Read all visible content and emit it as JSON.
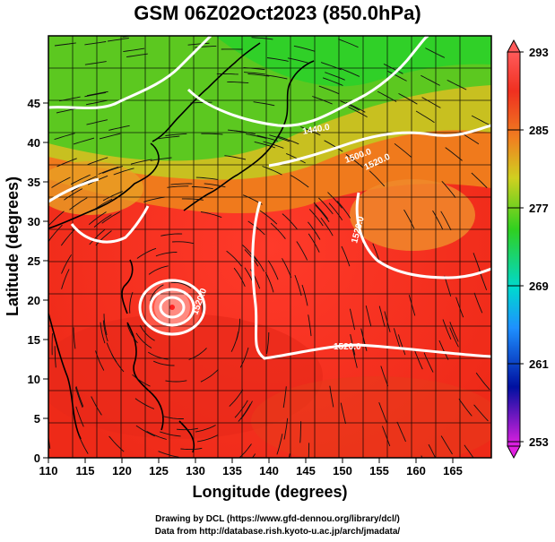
{
  "title": "GSM 06Z02Oct2023 (850.0hPa)",
  "xlabel": "Longitude (degrees)",
  "ylabel": "Latitude  (degrees)",
  "x_ticks": [
    "110",
    "115",
    "120",
    "125",
    "130",
    "135",
    "140",
    "145",
    "150",
    "155",
    "160",
    "165"
  ],
  "y_ticks": [
    "0",
    "5",
    "10",
    "15",
    "20",
    "25",
    "30",
    "35",
    "40",
    "45"
  ],
  "colorbar": {
    "labels": [
      "293",
      "285",
      "277",
      "269",
      "261",
      "253"
    ],
    "min": 253,
    "max": 293
  },
  "contour_labels": [
    "1440.0",
    "1500.0",
    "1520.0",
    "1520.0",
    "1520.0",
    "1520.0"
  ],
  "credits": [
    "Drawing by DCL (https://www.gfd-dennou.org/library/dcl/)",
    "Data from http://database.rish.kyoto-u.ac.jp/arch/jmadata/"
  ],
  "chart_data": {
    "type": "heatmap",
    "title": "GSM 06Z02Oct2023 (850.0hPa)",
    "xlabel": "Longitude (degrees)",
    "ylabel": "Latitude  (degrees)",
    "xlim": [
      110,
      170
    ],
    "ylim": [
      0,
      50
    ],
    "colorbar_range": [
      253,
      293
    ],
    "colormap": [
      "#e020d0",
      "#0000a0",
      "#1e90ff",
      "#00e0e0",
      "#20d020",
      "#80d020",
      "#f0a020",
      "#f06010",
      "#e83020",
      "#ff5050"
    ],
    "features": [
      {
        "kind": "typhoon-center",
        "lon": 127,
        "lat": 19.5
      },
      {
        "kind": "contour",
        "level": "1520.0",
        "lon": 145,
        "lat": 15.5
      },
      {
        "kind": "contour",
        "level": "1500.0",
        "lon": 156,
        "lat": 34
      }
    ],
    "grid": true
  }
}
